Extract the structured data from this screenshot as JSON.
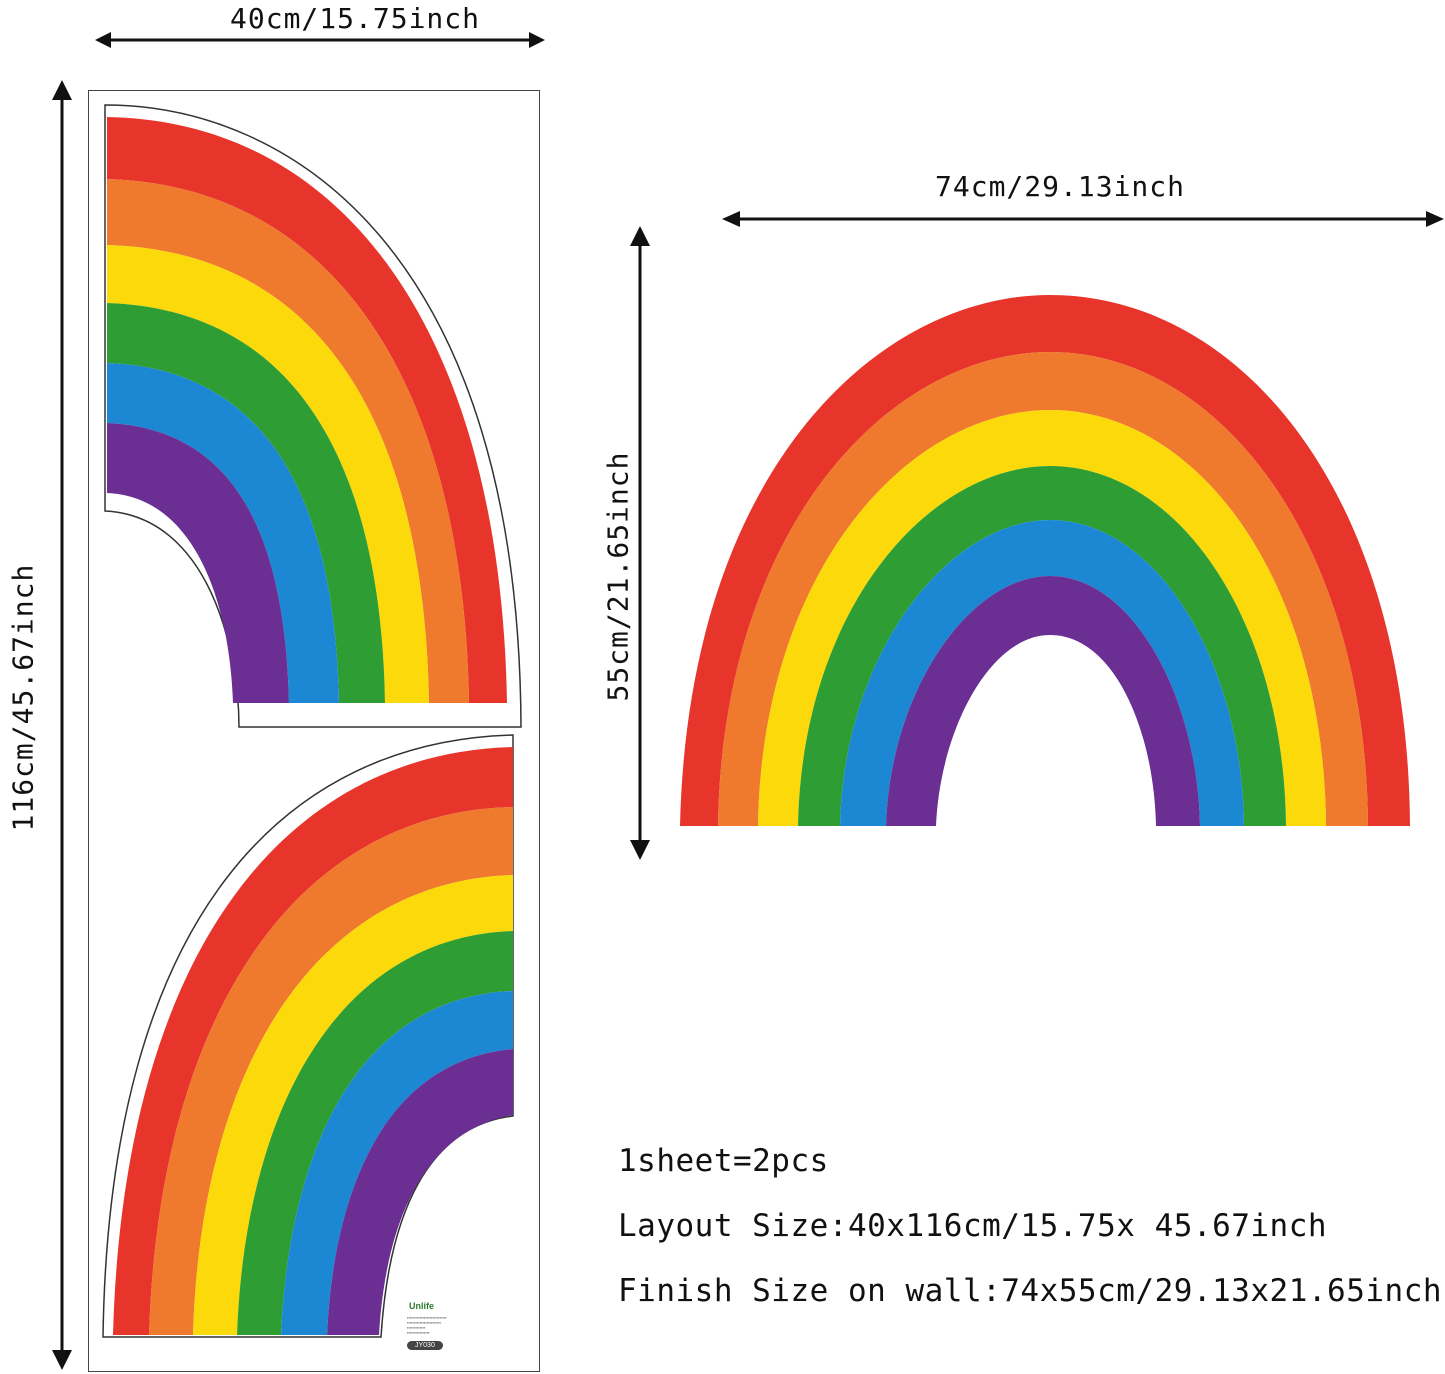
{
  "dimensions": {
    "sheet_width": "40cm/15.75inch",
    "sheet_height": "116cm/45.67inch",
    "finished_width": "74cm/29.13inch",
    "finished_height": "55cm/21.65inch"
  },
  "info": {
    "line1": "1sheet=2pcs",
    "line2": "Layout Size:40x116cm/15.75x 45.67inch",
    "line3": "Finish Size on wall:74x55cm/29.13x21.65inch"
  },
  "sheet_label": {
    "brand": "Unlife",
    "code": "JY030"
  },
  "colors": {
    "red": "#e8352c",
    "orange": "#ef7a2e",
    "yellow": "#fbd90b",
    "green": "#2e9e34",
    "blue": "#1c88d4",
    "purple": "#6b2f94",
    "dimension_line": "#111111"
  }
}
